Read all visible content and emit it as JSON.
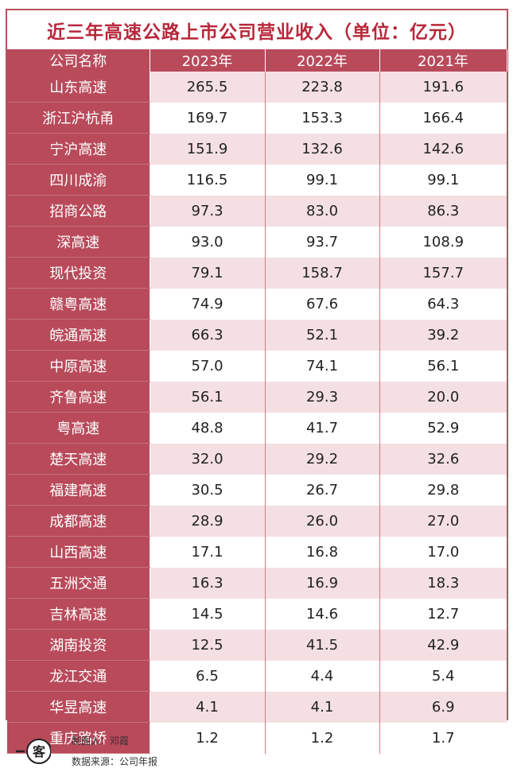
{
  "title": "近三年高速公路上市公司营业收入（单位：亿元）",
  "chart_data": {
    "type": "table",
    "columns": [
      "公司名称",
      "2023年",
      "2022年",
      "2021年"
    ],
    "rows": [
      {
        "company": "山东高速",
        "y2023": "265.5",
        "y2022": "223.8",
        "y2021": "191.6"
      },
      {
        "company": "浙江沪杭甬",
        "y2023": "169.7",
        "y2022": "153.3",
        "y2021": "166.4"
      },
      {
        "company": "宁沪高速",
        "y2023": "151.9",
        "y2022": "132.6",
        "y2021": "142.6"
      },
      {
        "company": "四川成渝",
        "y2023": "116.5",
        "y2022": "99.1",
        "y2021": "99.1"
      },
      {
        "company": "招商公路",
        "y2023": "97.3",
        "y2022": "83.0",
        "y2021": "86.3"
      },
      {
        "company": "深高速",
        "y2023": "93.0",
        "y2022": "93.7",
        "y2021": "108.9"
      },
      {
        "company": "现代投资",
        "y2023": "79.1",
        "y2022": "158.7",
        "y2021": "157.7"
      },
      {
        "company": "赣粤高速",
        "y2023": "74.9",
        "y2022": "67.6",
        "y2021": "64.3"
      },
      {
        "company": "皖通高速",
        "y2023": "66.3",
        "y2022": "52.1",
        "y2021": "39.2"
      },
      {
        "company": "中原高速",
        "y2023": "57.0",
        "y2022": "74.1",
        "y2021": "56.1"
      },
      {
        "company": "齐鲁高速",
        "y2023": "56.1",
        "y2022": "29.3",
        "y2021": "20.0"
      },
      {
        "company": "粤高速",
        "y2023": "48.8",
        "y2022": "41.7",
        "y2021": "52.9"
      },
      {
        "company": "楚天高速",
        "y2023": "32.0",
        "y2022": "29.2",
        "y2021": "32.6"
      },
      {
        "company": "福建高速",
        "y2023": "30.5",
        "y2022": "26.7",
        "y2021": "29.8"
      },
      {
        "company": "成都高速",
        "y2023": "28.9",
        "y2022": "26.0",
        "y2021": "27.0"
      },
      {
        "company": "山西高速",
        "y2023": "17.1",
        "y2022": "16.8",
        "y2021": "17.0"
      },
      {
        "company": "五洲交通",
        "y2023": "16.3",
        "y2022": "16.9",
        "y2021": "18.3"
      },
      {
        "company": "吉林高速",
        "y2023": "14.5",
        "y2022": "14.6",
        "y2021": "12.7"
      },
      {
        "company": "湖南投资",
        "y2023": "12.5",
        "y2022": "41.5",
        "y2021": "42.9"
      },
      {
        "company": "龙江交通",
        "y2023": "6.5",
        "y2022": "4.4",
        "y2021": "5.4"
      },
      {
        "company": "华昱高速",
        "y2023": "4.1",
        "y2022": "4.1",
        "y2021": "6.9"
      },
      {
        "company": "重庆路桥",
        "y2023": "1.2",
        "y2022": "1.2",
        "y2021": "1.7"
      }
    ]
  },
  "footer": {
    "logo_text": "一客",
    "maker": "制图人：邓霞",
    "source": "数据来源：公司年报"
  },
  "colors": {
    "title": "#b8283a",
    "header_bg": "#b84a5a",
    "stripe": "#f4dfe2"
  }
}
